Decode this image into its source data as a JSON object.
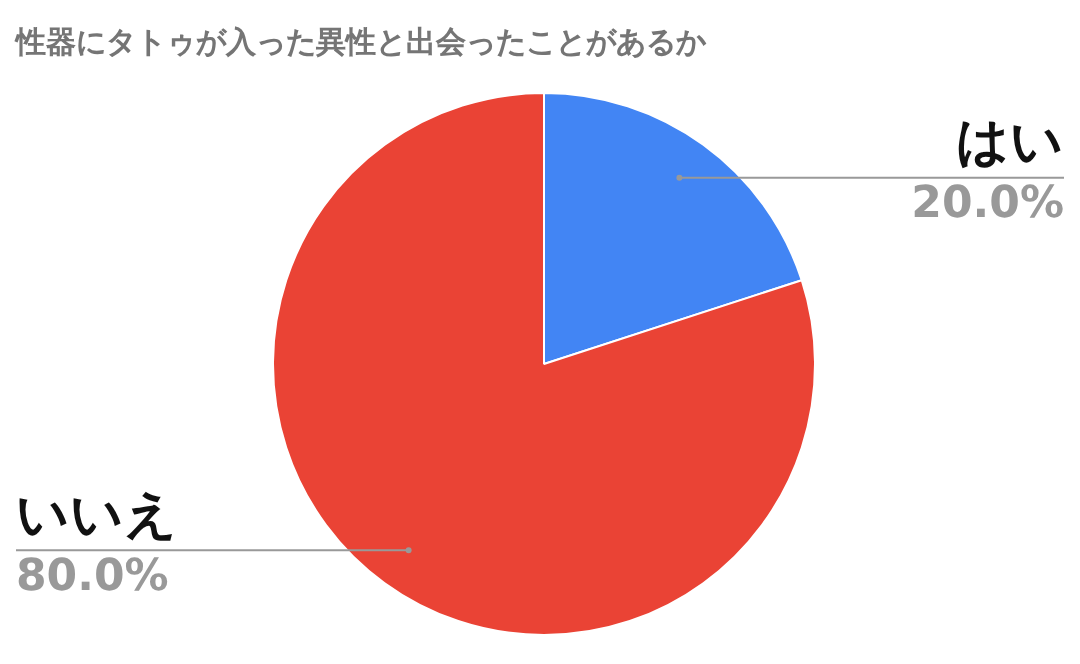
{
  "chart_data": {
    "type": "pie",
    "title": "性器にタトゥが入った異性と出会ったことがあるか",
    "categories": [
      "はい",
      "いいえ"
    ],
    "values": [
      20,
      80
    ],
    "colors": [
      "#4285f4",
      "#ea4335"
    ],
    "value_labels": [
      "20.0%",
      "80.0%"
    ],
    "legend": false
  }
}
